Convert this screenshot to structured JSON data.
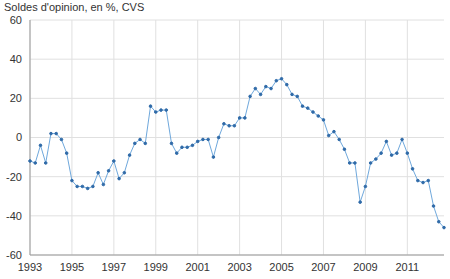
{
  "chart_data": {
    "type": "line",
    "title": "Soldes d'opinion, en %, CVS",
    "categories": [
      "1993",
      null,
      null,
      null,
      null,
      null,
      null,
      null,
      "1995",
      null,
      null,
      null,
      null,
      null,
      null,
      null,
      "1997",
      null,
      null,
      null,
      null,
      null,
      null,
      null,
      "1999",
      null,
      null,
      null,
      null,
      null,
      null,
      null,
      "2001",
      null,
      null,
      null,
      null,
      null,
      null,
      null,
      "2003",
      null,
      null,
      null,
      null,
      null,
      null,
      null,
      "2005",
      null,
      null,
      null,
      null,
      null,
      null,
      null,
      "2007",
      null,
      null,
      null,
      null,
      null,
      null,
      null,
      "2009",
      null,
      null,
      null,
      null,
      null,
      null,
      null,
      "2011",
      null,
      null,
      null,
      null,
      null,
      null,
      null
    ],
    "values": [
      -12,
      -13,
      -4,
      -13,
      2,
      2,
      -1,
      -8,
      -22,
      -25,
      -25,
      -26,
      -25,
      -18,
      -24,
      -17,
      -12,
      -21,
      -18,
      -9,
      -3,
      -1,
      -3,
      16,
      13,
      14,
      14,
      -3,
      -8,
      -5,
      -5,
      -4,
      -2,
      -1,
      -1,
      -10,
      0,
      7,
      6,
      6,
      10,
      10,
      21,
      25,
      22,
      26,
      25,
      29,
      30,
      27,
      22,
      21,
      16,
      15,
      13,
      11,
      9,
      1,
      3,
      -1,
      -6,
      -13,
      -13,
      -33,
      -25,
      -13,
      -11,
      -8,
      -2,
      -9,
      -8,
      -1,
      -8,
      -16,
      -22,
      -23,
      -22,
      -35,
      -43,
      -46
    ],
    "color": "#6fa8dc",
    "marker": "circle",
    "ylim": [
      -60,
      60
    ],
    "yticks": [
      -60,
      -40,
      -20,
      0,
      20,
      40,
      60
    ],
    "grid": true
  }
}
